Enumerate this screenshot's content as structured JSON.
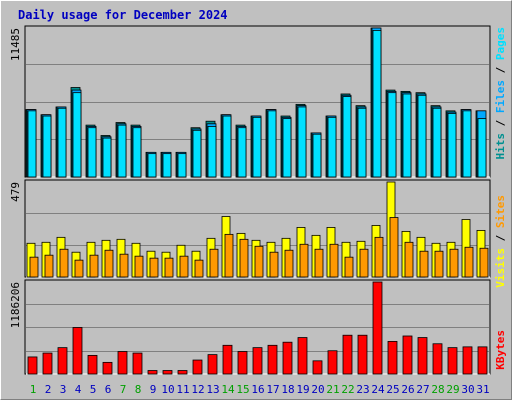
{
  "title": "Daily usage for December 2024",
  "colors": {
    "hits": "#009090",
    "files": "#00a8ff",
    "pages": "#00e0ff",
    "visits": "#ffff00",
    "sites": "#ff9900",
    "kbytes": "#ff0000",
    "weekend_day": "#00a000",
    "weekday": "#0000c0"
  },
  "chart_data": [
    {
      "type": "bar",
      "panel": "pages-files-hits",
      "ylabel": "Pages / Files / Hits",
      "ymax_label": "11485",
      "ylim": [
        0,
        11485
      ],
      "grid": true,
      "categories": [
        "1",
        "2",
        "3",
        "4",
        "5",
        "6",
        "7",
        "8",
        "9",
        "10",
        "11",
        "12",
        "13",
        "14",
        "15",
        "16",
        "17",
        "18",
        "19",
        "20",
        "21",
        "22",
        "23",
        "24",
        "25",
        "26",
        "27",
        "28",
        "29",
        "30",
        "31"
      ],
      "series": [
        {
          "name": "Hits",
          "values": [
            5200,
            4800,
            5400,
            6900,
            4000,
            3200,
            4200,
            4000,
            1900,
            1900,
            1900,
            3800,
            4300,
            4800,
            4000,
            4700,
            5200,
            4700,
            5600,
            3400,
            4700,
            6400,
            5500,
            11485,
            6700,
            6600,
            6500,
            5500,
            5100,
            5200,
            5100
          ]
        },
        {
          "name": "Files",
          "values": [
            5200,
            4800,
            5400,
            6700,
            3900,
            3100,
            4100,
            3900,
            1900,
            1900,
            1900,
            3700,
            4100,
            4800,
            3900,
            4700,
            5200,
            4600,
            5500,
            3400,
            4700,
            6300,
            5400,
            11485,
            6600,
            6500,
            6400,
            5400,
            5000,
            5200,
            5100
          ]
        },
        {
          "name": "Pages",
          "values": [
            5100,
            4700,
            5300,
            6500,
            3800,
            3000,
            4000,
            3800,
            1800,
            1800,
            1800,
            3600,
            3900,
            4700,
            3800,
            4600,
            5100,
            4500,
            5400,
            3300,
            4600,
            6200,
            5300,
            11300,
            6500,
            6400,
            6300,
            5300,
            4900,
            5100,
            4500
          ]
        }
      ]
    },
    {
      "type": "bar",
      "panel": "sites-visits",
      "ylabel": "Sites / Visits",
      "ymax_label": "479",
      "ylim": [
        0,
        479
      ],
      "grid": true,
      "categories": [
        "1",
        "2",
        "3",
        "4",
        "5",
        "6",
        "7",
        "8",
        "9",
        "10",
        "11",
        "12",
        "13",
        "14",
        "15",
        "16",
        "17",
        "18",
        "19",
        "20",
        "21",
        "22",
        "23",
        "24",
        "25",
        "26",
        "27",
        "28",
        "29",
        "30",
        "31"
      ],
      "series": [
        {
          "name": "Visits",
          "values": [
            170,
            175,
            200,
            125,
            175,
            185,
            190,
            170,
            130,
            125,
            160,
            130,
            195,
            305,
            220,
            185,
            175,
            195,
            250,
            210,
            250,
            175,
            180,
            260,
            479,
            230,
            200,
            170,
            175,
            290,
            235
          ]
        },
        {
          "name": "Sites",
          "values": [
            100,
            110,
            140,
            85,
            110,
            135,
            115,
            105,
            95,
            95,
            105,
            85,
            140,
            215,
            190,
            155,
            125,
            135,
            165,
            140,
            165,
            100,
            140,
            200,
            300,
            175,
            130,
            130,
            140,
            150,
            145
          ]
        }
      ]
    },
    {
      "type": "bar",
      "panel": "kbytes",
      "ylabel": "KBytes",
      "ymax_label": "1186206",
      "ylim": [
        0,
        1186206
      ],
      "grid": true,
      "categories": [
        "1",
        "2",
        "3",
        "4",
        "5",
        "6",
        "7",
        "8",
        "9",
        "10",
        "11",
        "12",
        "13",
        "14",
        "15",
        "16",
        "17",
        "18",
        "19",
        "20",
        "21",
        "22",
        "23",
        "24",
        "25",
        "26",
        "27",
        "28",
        "29",
        "30",
        "31"
      ],
      "series": [
        {
          "name": "KBytes",
          "values": [
            220000,
            270000,
            340000,
            600000,
            240000,
            150000,
            290000,
            270000,
            45000,
            45000,
            45000,
            180000,
            250000,
            370000,
            290000,
            340000,
            370000,
            410000,
            470000,
            170000,
            300000,
            500000,
            500000,
            1186206,
            420000,
            490000,
            470000,
            390000,
            340000,
            350000,
            350000
          ]
        }
      ]
    }
  ],
  "x_axis": {
    "days": [
      "1",
      "2",
      "3",
      "4",
      "5",
      "6",
      "7",
      "8",
      "9",
      "10",
      "11",
      "12",
      "13",
      "14",
      "15",
      "16",
      "17",
      "18",
      "19",
      "20",
      "21",
      "22",
      "23",
      "24",
      "25",
      "26",
      "27",
      "28",
      "29",
      "30",
      "31"
    ],
    "weekend_days": [
      "1",
      "7",
      "8",
      "14",
      "15",
      "21",
      "22",
      "28",
      "29"
    ]
  }
}
